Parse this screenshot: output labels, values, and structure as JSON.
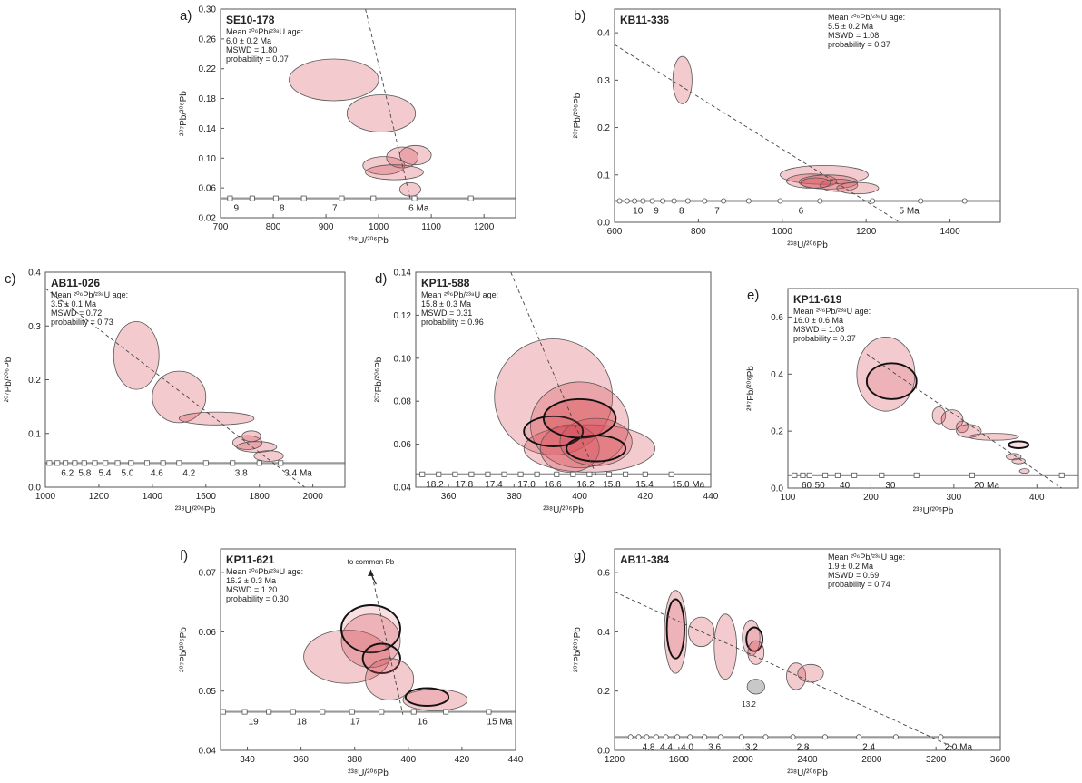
{
  "chart_data": [
    {
      "type": "scatter",
      "panel": "a)",
      "sample": "SE10-178",
      "stats": [
        "Mean ²⁰⁶Pb/²³⁸U age:",
        "6.0 ± 0.2 Ma",
        "MSWD = 1.80",
        "probability = 0.07"
      ],
      "xlabel": "²³⁸U/²⁰⁶Pb",
      "ylabel": "²⁰⁷Pb/²⁰⁶Pb",
      "xlim": [
        700,
        1260
      ],
      "ylim": [
        0.02,
        0.3
      ],
      "xticks": [
        700,
        800,
        900,
        1000,
        1100,
        1200
      ],
      "yticks": [
        "0.02",
        "0.06",
        "0.10",
        "0.14",
        "0.18",
        "0.22",
        "0.26",
        "0.30"
      ],
      "concordia_y": 0.046,
      "age_labels": [
        "9",
        "8",
        "7",
        "6 Ma"
      ],
      "age_x": [
        718,
        805,
        905,
        1050
      ],
      "marker_x": [
        718,
        760,
        805,
        858,
        930,
        990,
        1068,
        1175
      ],
      "marker": "square",
      "regression": [
        [
          975,
          0.3
        ],
        [
          1060,
          0.046
        ]
      ],
      "ellipses": [
        {
          "x": 915,
          "y": 0.205,
          "rx": 85,
          "ry": 0.028
        },
        {
          "x": 1005,
          "y": 0.16,
          "rx": 65,
          "ry": 0.025
        },
        {
          "x": 1010,
          "y": 0.09,
          "rx": 40,
          "ry": 0.012
        },
        {
          "x": 1045,
          "y": 0.101,
          "rx": 30,
          "ry": 0.014
        },
        {
          "x": 1070,
          "y": 0.104,
          "rx": 30,
          "ry": 0.013
        },
        {
          "x": 1030,
          "y": 0.081,
          "rx": 55,
          "ry": 0.01
        },
        {
          "x": 1060,
          "y": 0.058,
          "rx": 20,
          "ry": 0.009
        }
      ]
    },
    {
      "type": "scatter",
      "panel": "b)",
      "sample": "KB11-336",
      "stats": [
        "Mean ²⁰⁶Pb/²³⁸U age:",
        "5.5 ± 0.2 Ma",
        "MSWD = 1.08",
        "probability = 0.37"
      ],
      "xlabel": "²³⁸U/²⁰⁶Pb",
      "ylabel": "²⁰⁷Pb/²⁰⁶Pb",
      "xlim": [
        600,
        1520
      ],
      "ylim": [
        0.0,
        0.45
      ],
      "xticks": [
        600,
        800,
        1000,
        1200,
        1400
      ],
      "yticks": [
        "0.0",
        "0.1",
        "0.2",
        "0.3",
        "0.4"
      ],
      "concordia_y": 0.045,
      "age_labels": [
        "10",
        "9",
        "8",
        "7",
        "6",
        "5 Ma"
      ],
      "age_x": [
        635,
        685,
        745,
        830,
        1030,
        1270
      ],
      "marker_x": [
        612,
        630,
        648,
        668,
        690,
        715,
        742,
        775,
        815,
        860,
        920,
        995,
        1090,
        1215,
        1330,
        1435
      ],
      "marker": "circle",
      "regression": [
        [
          600,
          0.375
        ],
        [
          1280,
          0.0
        ]
      ],
      "ellipses": [
        {
          "x": 762,
          "y": 0.3,
          "rx": 23,
          "ry": 0.05
        },
        {
          "x": 1100,
          "y": 0.1,
          "rx": 105,
          "ry": 0.02
        },
        {
          "x": 1070,
          "y": 0.087,
          "rx": 60,
          "ry": 0.015
        },
        {
          "x": 1110,
          "y": 0.085,
          "rx": 70,
          "ry": 0.015
        },
        {
          "x": 1135,
          "y": 0.078,
          "rx": 45,
          "ry": 0.013
        },
        {
          "x": 1180,
          "y": 0.072,
          "rx": 50,
          "ry": 0.012
        },
        {
          "x": 1080,
          "y": 0.083,
          "rx": 35,
          "ry": 0.011
        }
      ]
    },
    {
      "type": "scatter",
      "panel": "c)",
      "sample": "AB11-026",
      "stats": [
        "Mean ²⁰⁶Pb/²³⁸U age:",
        "3.5 ± 0.1 Ma",
        "MSWD = 0.72",
        "probability = 0.73"
      ],
      "xlabel": "²³⁸U/²⁰⁶Pb",
      "ylabel": "²⁰⁷Pb/²⁰⁶Pb",
      "xlim": [
        1000,
        2120
      ],
      "ylim": [
        0.0,
        0.4
      ],
      "xticks": [
        1000,
        1200,
        1400,
        1600,
        1800,
        2000
      ],
      "yticks": [
        "0.0",
        "0.1",
        "0.2",
        "0.3",
        "0.4"
      ],
      "concordia_y": 0.045,
      "age_labels": [
        "6.2",
        "5.8",
        "5.4",
        "5.0",
        "4.6",
        "4.2",
        "3.8",
        "3.4 Ma"
      ],
      "age_x": [
        1045,
        1110,
        1185,
        1270,
        1380,
        1500,
        1695,
        1880
      ],
      "marker_x": [
        1015,
        1045,
        1075,
        1110,
        1145,
        1185,
        1225,
        1270,
        1320,
        1380,
        1440,
        1500,
        1600,
        1700,
        1800,
        1880
      ],
      "marker": "square",
      "regression": [
        [
          1000,
          0.37
        ],
        [
          1970,
          0.0
        ]
      ],
      "ellipses": [
        {
          "x": 1340,
          "y": 0.245,
          "rx": 85,
          "ry": 0.063
        },
        {
          "x": 1500,
          "y": 0.168,
          "rx": 100,
          "ry": 0.048
        },
        {
          "x": 1640,
          "y": 0.128,
          "rx": 140,
          "ry": 0.012
        },
        {
          "x": 1755,
          "y": 0.083,
          "rx": 55,
          "ry": 0.013
        },
        {
          "x": 1770,
          "y": 0.095,
          "rx": 35,
          "ry": 0.01
        },
        {
          "x": 1790,
          "y": 0.075,
          "rx": 75,
          "ry": 0.01
        },
        {
          "x": 1835,
          "y": 0.058,
          "rx": 55,
          "ry": 0.01
        }
      ]
    },
    {
      "type": "scatter",
      "panel": "d)",
      "sample": "KP11-588",
      "stats": [
        "Mean ²⁰⁶Pb/²³⁸U age:",
        "15.8 ± 0.3 Ma",
        "MSWD = 0.31",
        "probability = 0.96"
      ],
      "xlabel": "²³⁸U/²⁰⁶Pb",
      "ylabel": "²⁰⁷Pb/²⁰⁶Pb",
      "xlim": [
        350,
        440
      ],
      "ylim": [
        0.04,
        0.14
      ],
      "xticks": [
        360,
        380,
        400,
        420,
        440
      ],
      "yticks": [
        "0.04",
        "0.06",
        "0.08",
        "0.10",
        "0.12",
        "0.14"
      ],
      "concordia_y": 0.046,
      "age_labels": [
        "18.2",
        "17.8",
        "17.4",
        "17.0",
        "16.6",
        "16.2",
        "15.8",
        "15.4",
        "15.0 Ma"
      ],
      "age_x": [
        352,
        361,
        370,
        380,
        388,
        398,
        406,
        416,
        427
      ],
      "marker_x": [
        352,
        357,
        362,
        367,
        372,
        377,
        382,
        387,
        393,
        398,
        403,
        409,
        414,
        420,
        428
      ],
      "marker": "square",
      "regression": [
        [
          379,
          0.14
        ],
        [
          405,
          0.046
        ]
      ],
      "ellipses": [
        {
          "x": 392,
          "y": 0.082,
          "rx": 18,
          "ry": 0.027
        },
        {
          "x": 403,
          "y": 0.058,
          "rx": 20,
          "ry": 0.011
        },
        {
          "x": 400,
          "y": 0.069,
          "rx": 15,
          "ry": 0.02
        },
        {
          "x": 400,
          "y": 0.072,
          "rx": 11,
          "ry": 0.009
        },
        {
          "x": 397,
          "y": 0.058,
          "rx": 9,
          "ry": 0.011
        },
        {
          "x": 405,
          "y": 0.061,
          "rx": 11,
          "ry": 0.011
        },
        {
          "x": 392,
          "y": 0.066,
          "rx": 9,
          "ry": 0.007,
          "bold": true
        },
        {
          "x": 400,
          "y": 0.072,
          "rx": 11,
          "ry": 0.009,
          "bold": true
        },
        {
          "x": 405,
          "y": 0.058,
          "rx": 9,
          "ry": 0.006,
          "bold": true
        }
      ]
    },
    {
      "type": "scatter",
      "panel": "e)",
      "sample": "KP11-619",
      "stats": [
        "Mean ²⁰⁶Pb/²³⁸U age:",
        "16.0 ± 0.6 Ma",
        "MSWD = 1.08",
        "probability = 0.37"
      ],
      "xlabel": "²³⁸U/²⁰⁶Pb",
      "ylabel": "²⁰⁷Pb/²⁰⁶Pb",
      "xlim": [
        100,
        450
      ],
      "ylim": [
        0.0,
        0.7
      ],
      "xticks": [
        100,
        200,
        300,
        400
      ],
      "yticks": [
        "0.0",
        "0.2",
        "0.4",
        "0.6"
      ],
      "concordia_y": 0.045,
      "age_labels": [
        "60",
        "50",
        "40",
        "30",
        "20 Ma"
      ],
      "age_x": [
        112,
        128,
        158,
        213,
        320
      ],
      "marker_x": [
        108,
        118,
        126,
        145,
        160,
        180,
        213,
        255,
        322,
        430
      ],
      "marker": "square",
      "regression": [
        [
          195,
          0.47
        ],
        [
          430,
          0.0
        ]
      ],
      "ellipses": [
        {
          "x": 218,
          "y": 0.4,
          "rx": 35,
          "ry": 0.13
        },
        {
          "x": 225,
          "y": 0.375,
          "rx": 30,
          "ry": 0.063,
          "bold": true
        },
        {
          "x": 282,
          "y": 0.255,
          "rx": 8,
          "ry": 0.03
        },
        {
          "x": 298,
          "y": 0.24,
          "rx": 13,
          "ry": 0.035
        },
        {
          "x": 310,
          "y": 0.215,
          "rx": 7,
          "ry": 0.02
        },
        {
          "x": 318,
          "y": 0.2,
          "rx": 15,
          "ry": 0.023
        },
        {
          "x": 348,
          "y": 0.18,
          "rx": 30,
          "ry": 0.012
        },
        {
          "x": 378,
          "y": 0.152,
          "rx": 12,
          "ry": 0.012,
          "bold": true
        },
        {
          "x": 372,
          "y": 0.11,
          "rx": 9,
          "ry": 0.011
        },
        {
          "x": 378,
          "y": 0.095,
          "rx": 8,
          "ry": 0.01
        },
        {
          "x": 385,
          "y": 0.06,
          "rx": 6,
          "ry": 0.008
        }
      ]
    },
    {
      "type": "scatter",
      "panel": "f)",
      "sample": "KP11-621",
      "stats": [
        "Mean ²⁰⁶Pb/²³⁸U age:",
        "16.2 ± 0.3 Ma",
        "MSWD = 1.20",
        "probability = 0.30"
      ],
      "annotation": "to common Pb",
      "xlabel": "²³⁸U/²⁰⁶Pb",
      "ylabel": "²⁰⁷Pb/²⁰⁶Pb",
      "xlim": [
        330,
        440
      ],
      "ylim": [
        0.04,
        0.074
      ],
      "xticks": [
        340,
        360,
        380,
        400,
        420,
        440
      ],
      "yticks": [
        "0.04",
        "0.05",
        "0.06",
        "0.07"
      ],
      "concordia_y": 0.0465,
      "age_labels": [
        "19",
        "18",
        "17",
        "16",
        "15 Ma"
      ],
      "age_x": [
        339,
        357,
        377,
        402,
        428
      ],
      "marker_x": [
        331,
        339,
        348,
        357,
        368,
        379,
        390,
        402,
        414,
        430
      ],
      "marker": "square",
      "regression": [
        [
          386,
          0.0705
        ],
        [
          398,
          0.046
        ]
      ],
      "ellipses": [
        {
          "x": 377,
          "y": 0.0558,
          "rx": 16,
          "ry": 0.0045
        },
        {
          "x": 386,
          "y": 0.0585,
          "rx": 11,
          "ry": 0.0045
        },
        {
          "x": 386,
          "y": 0.0605,
          "rx": 11,
          "ry": 0.004,
          "bold": true
        },
        {
          "x": 390,
          "y": 0.0555,
          "rx": 7,
          "ry": 0.0025,
          "bold": true
        },
        {
          "x": 393,
          "y": 0.052,
          "rx": 9,
          "ry": 0.0035
        },
        {
          "x": 410,
          "y": 0.0485,
          "rx": 12,
          "ry": 0.0018
        },
        {
          "x": 407,
          "y": 0.049,
          "rx": 8,
          "ry": 0.0015,
          "bold": true
        }
      ]
    },
    {
      "type": "scatter",
      "panel": "g)",
      "sample": "AB11-384",
      "stats": [
        "Mean ²⁰⁶Pb/²³⁸U age:",
        "1.9 ± 0.2 Ma",
        "MSWD = 0.69",
        "probability = 0.74"
      ],
      "annotation": "13.2",
      "xlabel": "²³⁸U/²⁰⁶Pb",
      "ylabel": "²⁰⁷Pb/²⁰⁶Pb",
      "xlim": [
        1200,
        3600
      ],
      "ylim": [
        0.0,
        0.68
      ],
      "xticks": [
        1200,
        1600,
        2000,
        2400,
        2800,
        3200,
        3600
      ],
      "yticks": [
        "0.0",
        "0.2",
        "0.4",
        "0.6"
      ],
      "concordia_y": 0.045,
      "age_labels": [
        "4.8",
        "4.4",
        "4.0",
        "3.6",
        "3.2",
        "2.8",
        "2.4",
        "2.0 Ma"
      ],
      "age_x": [
        1350,
        1460,
        1590,
        1760,
        1990,
        2310,
        2720,
        3230
      ],
      "marker_x": [
        1300,
        1350,
        1400,
        1460,
        1520,
        1590,
        1670,
        1760,
        1860,
        1990,
        2140,
        2310,
        2510,
        2720,
        2950,
        3230
      ],
      "marker": "circle",
      "regression": [
        [
          1200,
          0.535
        ],
        [
          3350,
          0.0
        ]
      ],
      "ellipses": [
        {
          "x": 1580,
          "y": 0.4,
          "rx": 70,
          "ry": 0.14
        },
        {
          "x": 1580,
          "y": 0.41,
          "rx": 55,
          "ry": 0.1,
          "bold": true
        },
        {
          "x": 1740,
          "y": 0.4,
          "rx": 80,
          "ry": 0.05
        },
        {
          "x": 1890,
          "y": 0.35,
          "rx": 70,
          "ry": 0.11
        },
        {
          "x": 2050,
          "y": 0.38,
          "rx": 55,
          "ry": 0.06
        },
        {
          "x": 2070,
          "y": 0.375,
          "rx": 50,
          "ry": 0.04,
          "bold": true
        },
        {
          "x": 2080,
          "y": 0.33,
          "rx": 50,
          "ry": 0.04
        },
        {
          "x": 2330,
          "y": 0.25,
          "rx": 60,
          "ry": 0.045
        },
        {
          "x": 2420,
          "y": 0.26,
          "rx": 80,
          "ry": 0.03
        },
        {
          "x": 2080,
          "y": 0.215,
          "rx": 55,
          "ry": 0.025,
          "grey": true
        }
      ]
    }
  ]
}
